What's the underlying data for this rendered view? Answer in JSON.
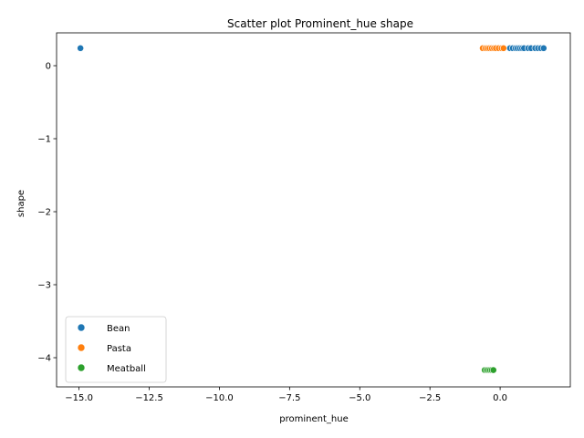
{
  "chart_data": {
    "type": "scatter",
    "title": "Scatter plot Prominent_hue shape",
    "xlabel": "prominent_hue",
    "ylabel": "shape",
    "xlim": [
      -15.8,
      2.5
    ],
    "ylim": [
      -4.4,
      0.45
    ],
    "xticks": [
      -15.0,
      -12.5,
      -10.0,
      -7.5,
      -5.0,
      -2.5,
      0.0
    ],
    "xtick_labels": [
      "−15.0",
      "−12.5",
      "−10.0",
      "−7.5",
      "−5.0",
      "−2.5",
      "0.0"
    ],
    "yticks": [
      0,
      -1,
      -2,
      -3,
      -4
    ],
    "ytick_labels": [
      "0",
      "−1",
      "−2",
      "−3",
      "−4"
    ],
    "grid": false,
    "legend_position": "lower-left",
    "series": [
      {
        "name": "Bean",
        "color": "#1f77b4",
        "x": [
          -14.95,
          0.35,
          0.45,
          0.55,
          0.62,
          0.7,
          0.78,
          0.85,
          1.0,
          1.1,
          1.25,
          1.35,
          1.45,
          1.55
        ],
        "y": [
          0.24,
          0.24,
          0.24,
          0.24,
          0.24,
          0.24,
          0.24,
          0.24,
          0.24,
          0.24,
          0.24,
          0.24,
          0.24,
          0.24
        ]
      },
      {
        "name": "Pasta",
        "color": "#ff7f0e",
        "x": [
          -0.62,
          -0.52,
          -0.45,
          -0.38,
          -0.3,
          -0.22,
          -0.15,
          -0.05,
          0.05,
          0.12
        ],
        "y": [
          0.24,
          0.24,
          0.24,
          0.24,
          0.24,
          0.24,
          0.24,
          0.24,
          0.24,
          0.24
        ]
      },
      {
        "name": "Meatball",
        "color": "#2ca02c",
        "x": [
          -0.55,
          -0.48,
          -0.42,
          -0.36,
          -0.3,
          -0.24
        ],
        "y": [
          -4.17,
          -4.17,
          -4.17,
          -4.17,
          -4.17,
          -4.17
        ]
      }
    ]
  }
}
